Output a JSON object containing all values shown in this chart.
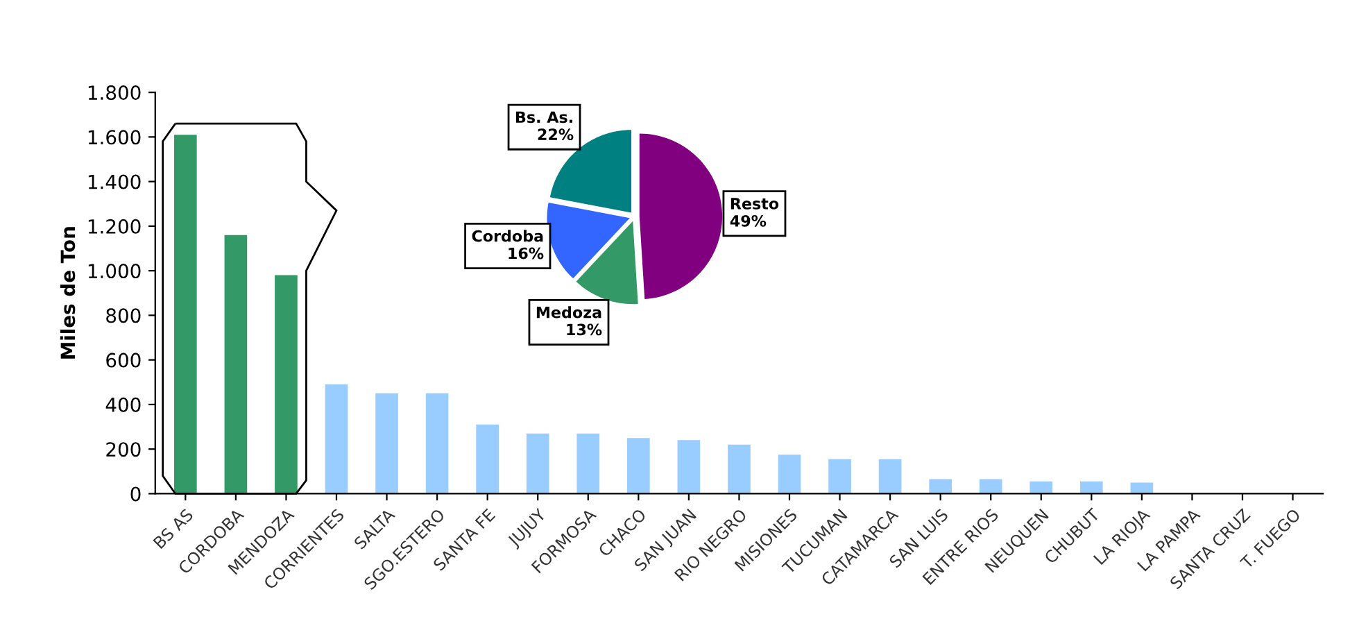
{
  "chart_data": [
    {
      "type": "bar",
      "ylabel": "Miles de Ton",
      "categories": [
        "BS AS",
        "CORDOBA",
        "MENDOZA",
        "CORRIENTES",
        "SALTA",
        "SGO.ESTERO",
        "SANTA FE",
        "JUJUY",
        "FORMOSA",
        "CHACO",
        "SAN JUAN",
        "RIO NEGRO",
        "MISIONES",
        "TUCUMAN",
        "CATAMARCA",
        "SAN LUIS",
        "ENTRE RIOS",
        "NEUQUEN",
        "CHUBUT",
        "LA RIOJA",
        "LA PAMPA",
        "SANTA CRUZ",
        "T. FUEGO"
      ],
      "values": [
        1610,
        1160,
        980,
        490,
        450,
        450,
        310,
        270,
        270,
        250,
        240,
        220,
        175,
        155,
        155,
        65,
        65,
        55,
        55,
        50,
        0,
        0,
        0
      ],
      "colors": [
        "#339966",
        "#339966",
        "#339966",
        "#99ccff",
        "#99ccff",
        "#99ccff",
        "#99ccff",
        "#99ccff",
        "#99ccff",
        "#99ccff",
        "#99ccff",
        "#99ccff",
        "#99ccff",
        "#99ccff",
        "#99ccff",
        "#99ccff",
        "#99ccff",
        "#99ccff",
        "#99ccff",
        "#99ccff",
        "#99ccff",
        "#99ccff",
        "#99ccff"
      ],
      "ylim": [
        0,
        1800
      ],
      "yticks": [
        0,
        200,
        400,
        600,
        800,
        {
          "value": 1000,
          "label": "1.000"
        },
        {
          "value": 1200,
          "label": "1.200"
        },
        {
          "value": 1400,
          "label": "1.400"
        },
        {
          "value": 1600,
          "label": "1.600"
        },
        {
          "value": 1800,
          "label": "1.800"
        }
      ],
      "grid": false,
      "legend": false
    },
    {
      "type": "pie",
      "categories": [
        "Resto",
        "Medoza",
        "Cordoba",
        "Bs. As."
      ],
      "values": [
        49,
        13,
        16,
        22
      ],
      "colors": [
        "#800080",
        "#339966",
        "#3366ff",
        "#008080"
      ],
      "value_labels": [
        "49%",
        "13%",
        "16%",
        "22%"
      ]
    }
  ]
}
